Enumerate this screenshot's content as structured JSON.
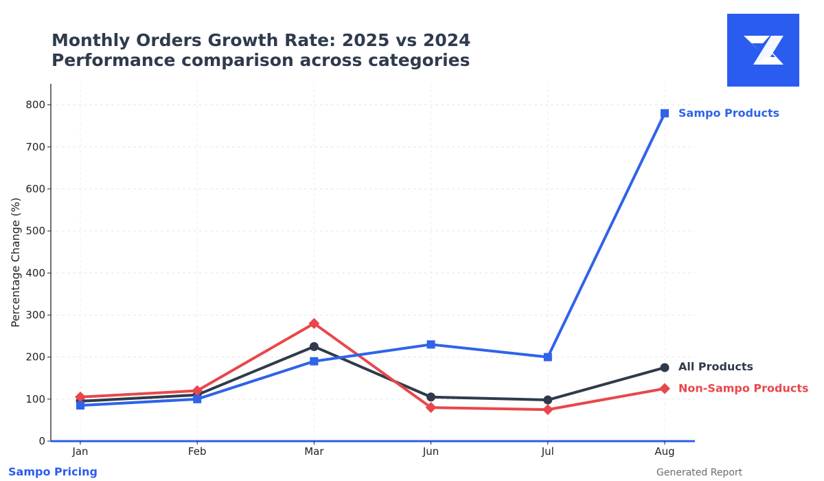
{
  "header": {
    "title_line1": "Monthly Orders Growth Rate: 2025 vs 2024",
    "title_line2": "Performance comparison across categories"
  },
  "logo": {
    "icon": "sampo-s-logo-icon",
    "background": "#2b5cf0"
  },
  "footer": {
    "brand": "Sampo Pricing",
    "note": "Generated Report"
  },
  "chart_data": {
    "type": "line",
    "title": "Monthly Orders Growth Rate: 2025 vs 2024",
    "subtitle": "Performance comparison across categories",
    "xlabel": "",
    "ylabel": "Percentage Change (%)",
    "categories": [
      "Jan",
      "Feb",
      "Mar",
      "Jun",
      "Jul",
      "Aug"
    ],
    "ylim": [
      0,
      850
    ],
    "yticks": [
      0,
      100,
      200,
      300,
      400,
      500,
      600,
      700,
      800
    ],
    "grid": true,
    "legend": "end-of-line labels",
    "series": [
      {
        "name": "All Products",
        "color": "#2f3b4c",
        "marker": "circle",
        "values": [
          95,
          110,
          225,
          105,
          98,
          175
        ]
      },
      {
        "name": "Non-Sampo Products",
        "color": "#e8474b",
        "marker": "diamond",
        "values": [
          105,
          120,
          280,
          80,
          75,
          125
        ]
      },
      {
        "name": "Sampo Products",
        "color": "#2f63e8",
        "marker": "square",
        "values": [
          85,
          100,
          190,
          230,
          200,
          780
        ]
      }
    ]
  }
}
